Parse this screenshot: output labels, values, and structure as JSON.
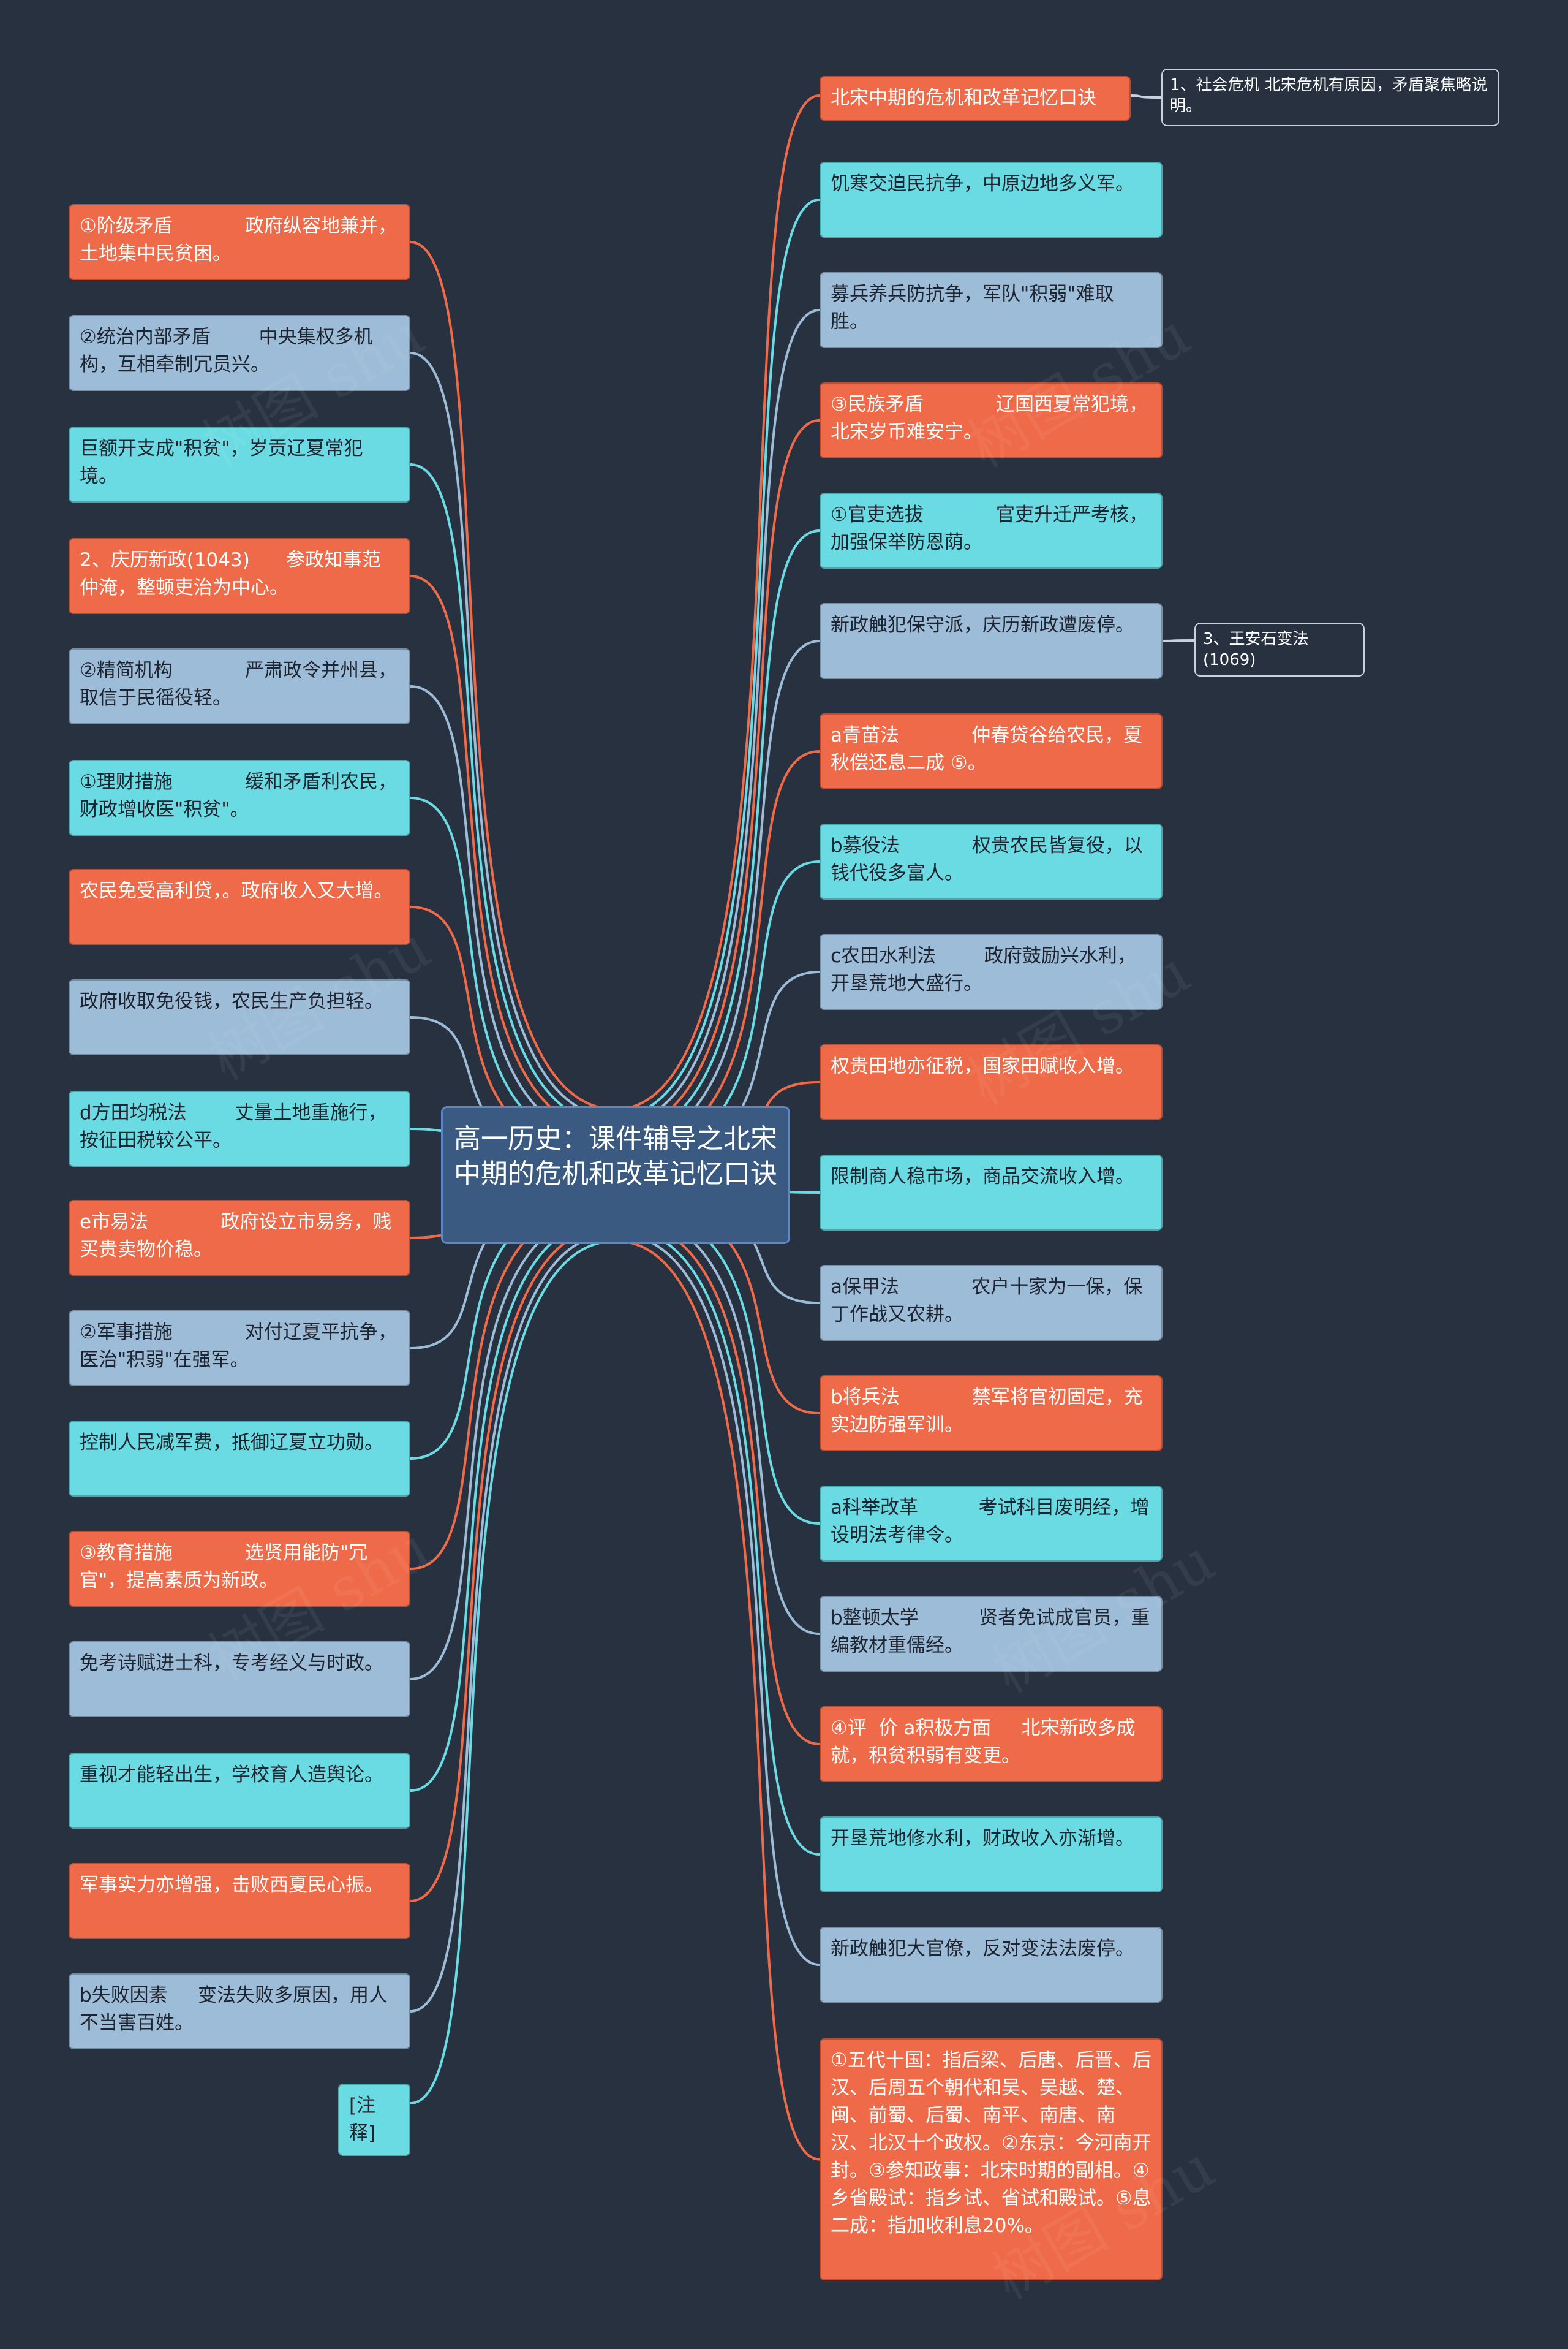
{
  "center": {
    "label": "高一历史：课件辅导之北宋中期的危机和改革记忆口诀"
  },
  "colors": {
    "orange": "#ef6a48",
    "cyan": "#6adbe2",
    "blue": "#9dbcd7",
    "background": "#283140",
    "center": "#3a5a82"
  },
  "left_nodes": [
    {
      "text": "①阶级矛盾            政府纵容地兼并，土地集中民贫困。",
      "color": "orange"
    },
    {
      "text": "②统治内部矛盾        中央集权多机构，互相牵制冗员兴。",
      "color": "blue"
    },
    {
      "text": "巨额开支成\"积贫\"，岁贡辽夏常犯境。",
      "color": "cyan"
    },
    {
      "text": "2、庆历新政(1043)      参政知事范仲淹，整顿吏治为中心。",
      "color": "orange"
    },
    {
      "text": "②精简机构            严肃政令并州县，取信于民徭役轻。",
      "color": "blue"
    },
    {
      "text": "①理财措施            缓和矛盾利农民，财政增收医\"积贫\"。",
      "color": "cyan"
    },
    {
      "text": "农民免受高利贷，。政府收入又大增。",
      "color": "orange"
    },
    {
      "text": "政府收取免役钱，农民生产负担轻。",
      "color": "blue"
    },
    {
      "text": "d方田均税法        丈量土地重施行，按征田税较公平。",
      "color": "cyan"
    },
    {
      "text": "e市易法            政府设立市易务，贱买贵卖物价稳。",
      "color": "orange"
    },
    {
      "text": "②军事措施            对付辽夏平抗争，医治\"积弱\"在强军。",
      "color": "blue"
    },
    {
      "text": "控制人民减军费，抵御辽夏立功勋。",
      "color": "cyan"
    },
    {
      "text": "③教育措施            选贤用能防\"冗官\"，提高素质为新政。",
      "color": "orange"
    },
    {
      "text": "免考诗赋进士科，专考经义与时政。",
      "color": "blue"
    },
    {
      "text": "重视才能轻出生，学校育人造舆论。",
      "color": "cyan"
    },
    {
      "text": "军事实力亦增强，击败西夏民心振。",
      "color": "orange"
    },
    {
      "text": "b失败因素     变法失败多原因，用人不当害百姓。",
      "color": "blue"
    },
    {
      "text": "[注释]",
      "color": "cyan"
    }
  ],
  "right_nodes": [
    {
      "text": "北宋中期的危机和改革记忆口诀",
      "color": "orange"
    },
    {
      "text": "饥寒交迫民抗争，中原边地多义军。",
      "color": "cyan"
    },
    {
      "text": "募兵养兵防抗争，军队\"积弱\"难取胜。",
      "color": "blue"
    },
    {
      "text": "③民族矛盾            辽国西夏常犯境，北宋岁币难安宁。",
      "color": "orange"
    },
    {
      "text": "①官吏选拔            官吏升迁严考核，加强保举防恩荫。",
      "color": "cyan"
    },
    {
      "text": "新政触犯保守派，庆历新政遭废停。",
      "color": "blue"
    },
    {
      "text": "a青苗法            仲春贷谷给农民，夏秋偿还息二成 ⑤。",
      "color": "orange"
    },
    {
      "text": "b募役法            权贵农民皆复役，以钱代役多富人。",
      "color": "cyan"
    },
    {
      "text": "c农田水利法        政府鼓励兴水利，开垦荒地大盛行。",
      "color": "blue"
    },
    {
      "text": "权贵田地亦征税，国家田赋收入增。",
      "color": "orange"
    },
    {
      "text": "限制商人稳市场，商品交流收入增。",
      "color": "cyan"
    },
    {
      "text": "a保甲法            农户十家为一保，保丁作战又农耕。",
      "color": "blue"
    },
    {
      "text": "b将兵法            禁军将官初固定，充实边防强军训。",
      "color": "orange"
    },
    {
      "text": "a科举改革          考试科目废明经，增设明法考律令。",
      "color": "cyan"
    },
    {
      "text": "b整顿太学          贤者免试成官员，重编教材重儒经。",
      "color": "blue"
    },
    {
      "text": "④评  价 a积极方面     北宋新政多成就，积贫积弱有变更。",
      "color": "orange"
    },
    {
      "text": "开垦荒地修水利，财政收入亦渐增。",
      "color": "cyan"
    },
    {
      "text": "新政触犯大官僚，反对变法法废停。",
      "color": "blue"
    },
    {
      "text": "①五代十国：指后梁、后唐、后晋、后汉、后周五个朝代和吴、吴越、楚、闽、前蜀、后蜀、南平、南唐、南汉、北汉十个政权。②东京：今河南开封。③参知政事：北宋时期的副相。④乡省殿试：指乡试、省试和殿试。⑤息二成：指加收利息20%。",
      "color": "orange"
    }
  ],
  "sub_nodes": [
    {
      "text": "1、社会危机            北宋危机有原因，矛盾聚焦略说明。"
    },
    {
      "text": "3、王安石变法(1069)"
    }
  ],
  "watermark": "树图 shu"
}
